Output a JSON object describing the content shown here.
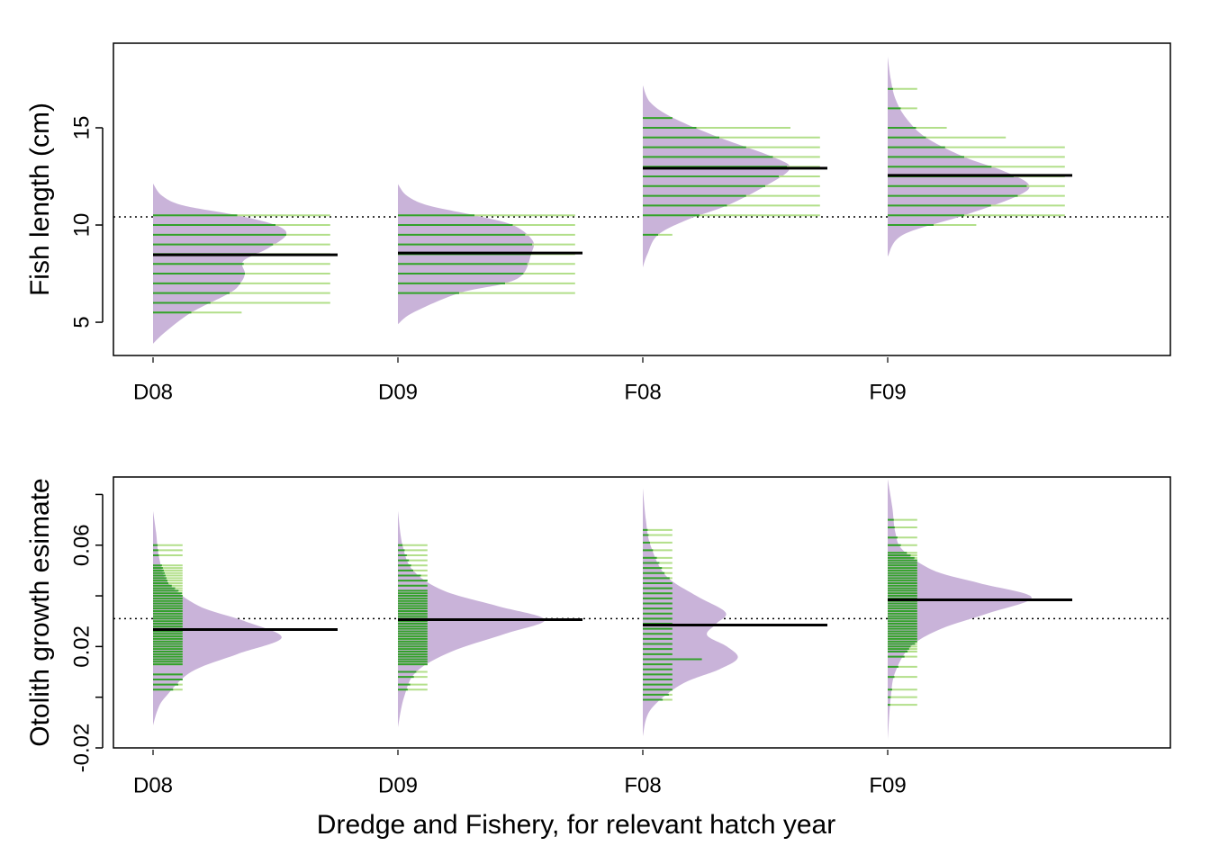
{
  "chart_data": [
    {
      "type": "beanplot",
      "ylabel": "Fish length (cm)",
      "categories": [
        "D08",
        "D09",
        "F08",
        "F09"
      ],
      "ylim": [
        3.29,
        19.35
      ],
      "yticks": [
        5,
        10,
        15
      ],
      "reference_line": 10.42,
      "means": [
        8.47,
        8.56,
        12.92,
        12.55
      ],
      "bean_color": "#c9b3d9",
      "line_color": "#33a02c",
      "line_color_light": "#b2df8a",
      "mean_color": "#000000",
      "beans": [
        {
          "density_y": [
            3.9,
            4.5,
            5.5,
            6.5,
            7.0,
            7.5,
            8.15,
            8.8,
            9.5,
            10.0,
            10.5,
            11.0,
            11.5,
            12.13
          ],
          "density": [
            0,
            0.08,
            0.25,
            0.5,
            0.57,
            0.6,
            0.59,
            0.75,
            0.87,
            0.8,
            0.55,
            0.2,
            0.06,
            0
          ],
          "observations": [
            5.5,
            6,
            6.5,
            7,
            7.5,
            8,
            8.5,
            9,
            9.5,
            10,
            10.5
          ],
          "counts": [
            3,
            6,
            6,
            6,
            6,
            6,
            6,
            6,
            6,
            6,
            6
          ]
        },
        {
          "density_y": [
            4.9,
            5.5,
            6.5,
            7.0,
            7.5,
            8.5,
            9.2,
            10.0,
            10.5,
            11.0,
            11.5,
            12.1
          ],
          "density": [
            0,
            0.1,
            0.4,
            0.7,
            0.82,
            0.87,
            0.88,
            0.75,
            0.5,
            0.2,
            0.06,
            0
          ],
          "observations": [
            6.5,
            7,
            7.5,
            8,
            8.5,
            9,
            9.5,
            10,
            10.5
          ],
          "counts": [
            6,
            6,
            6,
            6,
            6,
            6,
            6,
            6,
            6
          ]
        },
        {
          "density_y": [
            7.82,
            8.5,
            9.5,
            10.3,
            11.0,
            12.0,
            12.9,
            13.5,
            14.5,
            15.5,
            16.3,
            17.18
          ],
          "density": [
            0,
            0.03,
            0.1,
            0.3,
            0.55,
            0.8,
            0.96,
            0.85,
            0.5,
            0.2,
            0.05,
            0
          ],
          "observations": [
            9.5,
            10.5,
            11,
            11.5,
            12,
            12.5,
            13,
            13.5,
            14,
            14.5,
            15,
            15.5
          ],
          "counts": [
            1,
            6,
            6,
            6,
            6,
            6,
            6,
            6,
            6,
            6,
            5,
            1
          ]
        },
        {
          "density_y": [
            8.38,
            9.5,
            10.5,
            11.5,
            12.1,
            12.8,
            13.5,
            14.5,
            15.5,
            16.5,
            17.5,
            18.66
          ],
          "density": [
            0,
            0.1,
            0.5,
            0.85,
            0.92,
            0.75,
            0.5,
            0.25,
            0.12,
            0.05,
            0.02,
            0
          ],
          "observations": [
            10,
            10.5,
            11,
            11.5,
            12,
            12.5,
            13,
            13.5,
            14,
            14.5,
            15,
            16,
            17
          ],
          "counts": [
            3,
            6,
            6,
            6,
            6,
            6,
            6,
            6,
            6,
            4,
            2,
            1,
            1
          ]
        }
      ]
    },
    {
      "type": "beanplot",
      "ylabel": "Otolith growth esimate",
      "xlabel": "Dredge and Fishery, for relevant hatch year",
      "categories": [
        "D08",
        "D09",
        "F08",
        "F09"
      ],
      "ylim": [
        -0.02,
        0.0869
      ],
      "yticks": [
        -0.02,
        0.02,
        0.06
      ],
      "minor_yticks": [
        0,
        0.04,
        0.08
      ],
      "reference_line": 0.031,
      "means": [
        0.0267,
        0.0306,
        0.0285,
        0.0384
      ],
      "bean_color": "#c9b3d9",
      "line_color": "#33a02c",
      "line_color_light": "#b2df8a",
      "mean_color": "#000000",
      "beans": [
        {
          "density_y": [
            -0.0111,
            -0.005,
            0.0,
            0.01,
            0.017,
            0.0235,
            0.03,
            0.036,
            0.045,
            0.055,
            0.065,
            0.0735
          ],
          "density": [
            0,
            0.03,
            0.08,
            0.25,
            0.55,
            0.84,
            0.6,
            0.3,
            0.1,
            0.04,
            0.02,
            0
          ],
          "observations": [
            0.003,
            0.005,
            0.007,
            0.009,
            0.013,
            0.014,
            0.015,
            0.016,
            0.017,
            0.018,
            0.019,
            0.02,
            0.021,
            0.022,
            0.023,
            0.024,
            0.025,
            0.026,
            0.027,
            0.028,
            0.029,
            0.03,
            0.031,
            0.032,
            0.033,
            0.034,
            0.035,
            0.036,
            0.037,
            0.038,
            0.039,
            0.04,
            0.041,
            0.042,
            0.043,
            0.044,
            0.045,
            0.046,
            0.047,
            0.048,
            0.049,
            0.05,
            0.051,
            0.052,
            0.056,
            0.058,
            0.06
          ],
          "counts": [
            1,
            1,
            1,
            1,
            1,
            1,
            1,
            1,
            1,
            1,
            1,
            1,
            1,
            1,
            1,
            1,
            1,
            1,
            1,
            1,
            1,
            1,
            1,
            1,
            1,
            1,
            1,
            1,
            1,
            1,
            1,
            1,
            1,
            1,
            1,
            1,
            1,
            1,
            1,
            1,
            1,
            1,
            1,
            1,
            1,
            1,
            1
          ]
        },
        {
          "density_y": [
            -0.0119,
            0.0,
            0.01,
            0.018,
            0.025,
            0.0306,
            0.036,
            0.042,
            0.05,
            0.06,
            0.0735
          ],
          "density": [
            0,
            0.04,
            0.12,
            0.35,
            0.7,
            0.96,
            0.65,
            0.3,
            0.1,
            0.03,
            0
          ],
          "observations": [
            0.003,
            0.005,
            0.008,
            0.01,
            0.013,
            0.014,
            0.015,
            0.016,
            0.017,
            0.018,
            0.019,
            0.02,
            0.021,
            0.022,
            0.023,
            0.024,
            0.025,
            0.026,
            0.027,
            0.028,
            0.029,
            0.03,
            0.031,
            0.032,
            0.033,
            0.034,
            0.035,
            0.036,
            0.037,
            0.038,
            0.039,
            0.04,
            0.041,
            0.042,
            0.044,
            0.046,
            0.048,
            0.05,
            0.052,
            0.054,
            0.056,
            0.058,
            0.06
          ],
          "counts": [
            1,
            1,
            1,
            1,
            1,
            1,
            1,
            1,
            1,
            1,
            1,
            1,
            1,
            1,
            1,
            1,
            1,
            1,
            1,
            1,
            1,
            1,
            1,
            1,
            1,
            1,
            1,
            1,
            1,
            1,
            1,
            1,
            1,
            1,
            1,
            1,
            1,
            1,
            1,
            1,
            1,
            1,
            1
          ]
        },
        {
          "density_y": [
            -0.0154,
            -0.005,
            0.005,
            0.011,
            0.0155,
            0.02,
            0.0245,
            0.029,
            0.0335,
            0.04,
            0.048,
            0.06,
            0.07,
            0.0825
          ],
          "density": [
            0,
            0.05,
            0.25,
            0.5,
            0.62,
            0.55,
            0.42,
            0.48,
            0.54,
            0.35,
            0.15,
            0.05,
            0.02,
            0
          ],
          "observations": [
            -0.001,
            0.001,
            0.003,
            0.005,
            0.007,
            0.009,
            0.011,
            0.013,
            0.015,
            0.017,
            0.019,
            0.021,
            0.023,
            0.025,
            0.027,
            0.029,
            0.031,
            0.033,
            0.035,
            0.037,
            0.039,
            0.041,
            0.043,
            0.045,
            0.047,
            0.049,
            0.051,
            0.053,
            0.055,
            0.058,
            0.061,
            0.064,
            0.066
          ],
          "counts": [
            1,
            1,
            1,
            1,
            1,
            1,
            1,
            1,
            2,
            1,
            1,
            1,
            1,
            1,
            1,
            1,
            1,
            1,
            1,
            1,
            1,
            1,
            1,
            1,
            1,
            1,
            1,
            1,
            1,
            1,
            1,
            1,
            1
          ]
        },
        {
          "density_y": [
            -0.0169,
            0.0,
            0.01,
            0.02,
            0.027,
            0.033,
            0.0394,
            0.045,
            0.05,
            0.058,
            0.065,
            0.075,
            0.0861
          ],
          "density": [
            0,
            0.02,
            0.05,
            0.15,
            0.35,
            0.65,
            0.94,
            0.6,
            0.3,
            0.1,
            0.05,
            0.03,
            0
          ],
          "observations": [
            -0.003,
            0.0,
            0.003,
            0.008,
            0.012,
            0.016,
            0.018,
            0.019,
            0.02,
            0.021,
            0.022,
            0.023,
            0.024,
            0.025,
            0.026,
            0.027,
            0.028,
            0.029,
            0.03,
            0.031,
            0.032,
            0.033,
            0.034,
            0.035,
            0.036,
            0.037,
            0.038,
            0.039,
            0.04,
            0.041,
            0.042,
            0.043,
            0.044,
            0.045,
            0.046,
            0.047,
            0.048,
            0.049,
            0.05,
            0.051,
            0.052,
            0.053,
            0.054,
            0.055,
            0.056,
            0.057,
            0.06,
            0.063,
            0.067,
            0.07
          ],
          "counts": [
            1,
            1,
            1,
            1,
            1,
            1,
            1,
            1,
            1,
            1,
            1,
            1,
            1,
            1,
            1,
            1,
            1,
            1,
            1,
            1,
            1,
            1,
            1,
            1,
            1,
            1,
            1,
            1,
            1,
            1,
            1,
            1,
            1,
            1,
            1,
            1,
            1,
            1,
            1,
            1,
            1,
            1,
            1,
            1,
            1,
            1,
            1,
            1,
            1,
            1
          ]
        }
      ]
    }
  ]
}
